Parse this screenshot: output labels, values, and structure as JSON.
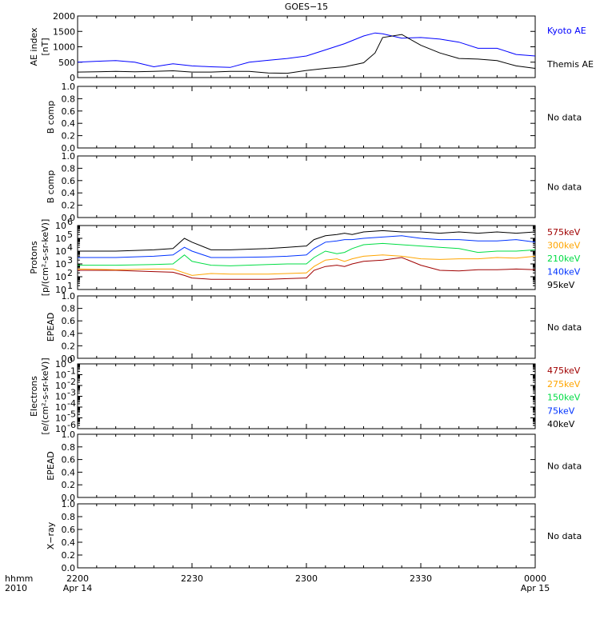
{
  "title": "GOES−15",
  "time_axis": {
    "corner_labels": [
      "hhmm",
      "2010"
    ],
    "tick_labels": [
      {
        "hhmm": "2200",
        "date": "Apr 14"
      },
      {
        "hhmm": "2230",
        "date": ""
      },
      {
        "hhmm": "2300",
        "date": ""
      },
      {
        "hhmm": "2330",
        "date": ""
      },
      {
        "hhmm": "0000",
        "date": "Apr 15"
      }
    ],
    "range_minutes": [
      0,
      120
    ]
  },
  "chart_data": [
    {
      "type": "line",
      "ylabel_lines": [
        "AE index",
        "[nT]"
      ],
      "ylim": [
        0,
        2000
      ],
      "yticks": [
        0,
        500,
        1000,
        1500,
        2000
      ],
      "ytick_labels": [
        "0",
        "500",
        "1000",
        "1500",
        "2000"
      ],
      "series": [
        {
          "name": "Kyoto AE",
          "color": "#0000ff",
          "x": [
            0,
            5,
            10,
            15,
            20,
            25,
            30,
            35,
            40,
            45,
            50,
            55,
            60,
            65,
            70,
            75,
            78,
            80,
            85,
            90,
            95,
            100,
            105,
            110,
            115,
            120
          ],
          "y": [
            500,
            530,
            550,
            500,
            350,
            450,
            380,
            350,
            330,
            500,
            560,
            620,
            700,
            900,
            1100,
            1350,
            1450,
            1420,
            1280,
            1300,
            1250,
            1150,
            950,
            950,
            750,
            700
          ]
        },
        {
          "name": "Themis AE",
          "color": "#000000",
          "x": [
            0,
            5,
            10,
            15,
            20,
            25,
            30,
            35,
            40,
            45,
            50,
            55,
            60,
            65,
            70,
            75,
            78,
            80,
            85,
            90,
            95,
            100,
            105,
            110,
            115,
            120
          ],
          "y": [
            180,
            190,
            200,
            190,
            200,
            220,
            180,
            180,
            200,
            200,
            150,
            140,
            230,
            300,
            350,
            480,
            800,
            1300,
            1400,
            1050,
            800,
            620,
            600,
            550,
            380,
            300
          ]
        }
      ]
    },
    {
      "type": "line",
      "ylabel_lines": [
        "B comp"
      ],
      "ylim": [
        0,
        1.0
      ],
      "yticks": [
        0,
        0.2,
        0.4,
        0.6,
        0.8,
        1.0
      ],
      "ytick_labels": [
        "0.0",
        "0.2",
        "0.4",
        "0.6",
        "0.8",
        "1.0"
      ],
      "no_data": "No data",
      "series": []
    },
    {
      "type": "line",
      "ylabel_lines": [
        "B comp"
      ],
      "ylim": [
        0,
        1.0
      ],
      "yticks": [
        0,
        0.2,
        0.4,
        0.6,
        0.8,
        1.0
      ],
      "ytick_labels": [
        "0.0",
        "0.2",
        "0.4",
        "0.6",
        "0.8",
        "1.0"
      ],
      "no_data": "No data",
      "series": []
    },
    {
      "type": "line",
      "ylabel_lines": [
        "Protons",
        "[p/(cm²-s-sr-keV)]"
      ],
      "log_scale": true,
      "ylim_exp": [
        1,
        6
      ],
      "ytick_exps": [
        1,
        2,
        3,
        4,
        5,
        6
      ],
      "ytick_base": "10",
      "series": [
        {
          "name": "575keV",
          "color": "#a00000",
          "x": [
            0,
            10,
            20,
            25,
            28,
            30,
            35,
            40,
            50,
            55,
            60,
            62,
            65,
            68,
            70,
            72,
            75,
            80,
            85,
            90,
            95,
            100,
            105,
            110,
            115,
            120
          ],
          "y_exp": [
            2.5,
            2.5,
            2.4,
            2.35,
            2.1,
            1.9,
            1.8,
            1.8,
            1.8,
            1.85,
            1.9,
            2.5,
            2.8,
            2.9,
            2.8,
            3.0,
            3.2,
            3.3,
            3.5,
            2.9,
            2.5,
            2.45,
            2.55,
            2.55,
            2.6,
            2.55
          ]
        },
        {
          "name": "300keV",
          "color": "#ffa500",
          "x": [
            0,
            10,
            20,
            25,
            28,
            30,
            35,
            40,
            50,
            55,
            60,
            62,
            65,
            68,
            70,
            72,
            75,
            80,
            85,
            90,
            95,
            100,
            105,
            110,
            115,
            120
          ],
          "y_exp": [
            2.6,
            2.55,
            2.6,
            2.6,
            2.3,
            2.1,
            2.25,
            2.2,
            2.2,
            2.25,
            2.3,
            2.8,
            3.3,
            3.4,
            3.2,
            3.4,
            3.6,
            3.7,
            3.6,
            3.4,
            3.35,
            3.4,
            3.4,
            3.5,
            3.45,
            3.6
          ]
        },
        {
          "name": "210keV",
          "color": "#00dd44",
          "x": [
            0,
            10,
            20,
            25,
            28,
            30,
            35,
            40,
            50,
            55,
            60,
            62,
            65,
            68,
            70,
            72,
            75,
            80,
            85,
            90,
            95,
            100,
            105,
            110,
            115,
            120
          ],
          "y_exp": [
            2.9,
            2.9,
            2.95,
            3.0,
            3.7,
            3.2,
            2.9,
            2.85,
            2.95,
            3.0,
            3.0,
            3.5,
            4.0,
            3.8,
            3.9,
            4.2,
            4.5,
            4.6,
            4.5,
            4.4,
            4.3,
            4.2,
            3.9,
            4.0,
            4.0,
            4.1
          ]
        },
        {
          "name": "140keV",
          "color": "#0033ff",
          "x": [
            0,
            10,
            20,
            25,
            28,
            30,
            35,
            40,
            50,
            55,
            60,
            62,
            65,
            68,
            70,
            72,
            75,
            80,
            85,
            90,
            95,
            100,
            105,
            110,
            115,
            120
          ],
          "y_exp": [
            3.5,
            3.5,
            3.6,
            3.7,
            4.3,
            4.0,
            3.5,
            3.5,
            3.55,
            3.6,
            3.7,
            4.2,
            4.7,
            4.8,
            4.9,
            4.9,
            5.0,
            5.1,
            5.2,
            5.0,
            4.9,
            4.9,
            4.8,
            4.8,
            4.9,
            4.7
          ]
        },
        {
          "name": "95keV",
          "color": "#000000",
          "x": [
            0,
            10,
            20,
            25,
            28,
            30,
            35,
            40,
            50,
            55,
            60,
            62,
            65,
            68,
            70,
            72,
            75,
            80,
            85,
            90,
            95,
            100,
            105,
            110,
            115,
            120
          ],
          "y_exp": [
            4.0,
            4.0,
            4.1,
            4.2,
            5.0,
            4.7,
            4.1,
            4.1,
            4.2,
            4.3,
            4.4,
            4.9,
            5.2,
            5.3,
            5.4,
            5.3,
            5.5,
            5.6,
            5.5,
            5.5,
            5.4,
            5.5,
            5.4,
            5.5,
            5.4,
            5.5
          ]
        }
      ]
    },
    {
      "type": "line",
      "ylabel_lines": [
        "EPEAD"
      ],
      "ylim": [
        0,
        1.0
      ],
      "yticks": [
        0,
        0.2,
        0.4,
        0.6,
        0.8,
        1.0
      ],
      "ytick_labels": [
        "0.0",
        "0.2",
        "0.4",
        "0.6",
        "0.8",
        "1.0"
      ],
      "no_data": "No data",
      "series": []
    },
    {
      "type": "line",
      "ylabel_lines": [
        "Electrons",
        "[e/(cm²-s-sr-keV)]"
      ],
      "log_scale": true,
      "ylim_exp": [
        -6,
        0
      ],
      "ytick_exps": [
        0,
        -1,
        -2,
        -3,
        -4,
        -5,
        -6
      ],
      "ytick_base": "10",
      "series": [
        {
          "name": "475keV",
          "color": "#a00000",
          "x": [],
          "y_exp": []
        },
        {
          "name": "275keV",
          "color": "#ffa500",
          "x": [],
          "y_exp": []
        },
        {
          "name": "150keV",
          "color": "#00dd44",
          "x": [],
          "y_exp": []
        },
        {
          "name": "75keV",
          "color": "#0033ff",
          "x": [],
          "y_exp": []
        },
        {
          "name": "40keV",
          "color": "#000000",
          "x": [],
          "y_exp": []
        }
      ]
    },
    {
      "type": "line",
      "ylabel_lines": [
        "EPEAD"
      ],
      "ylim": [
        0,
        1.0
      ],
      "yticks": [
        0,
        0.2,
        0.4,
        0.6,
        0.8,
        1.0
      ],
      "ytick_labels": [
        "0.0",
        "0.2",
        "0.4",
        "0.6",
        "0.8",
        "1.0"
      ],
      "no_data": "No data",
      "series": []
    },
    {
      "type": "line",
      "ylabel_lines": [
        "X−ray"
      ],
      "ylim": [
        0,
        1.0
      ],
      "yticks": [
        0,
        0.2,
        0.4,
        0.6,
        0.8,
        1.0
      ],
      "ytick_labels": [
        "0.0",
        "0.2",
        "0.4",
        "0.6",
        "0.8",
        "1.0"
      ],
      "no_data": "No data",
      "series": []
    }
  ]
}
